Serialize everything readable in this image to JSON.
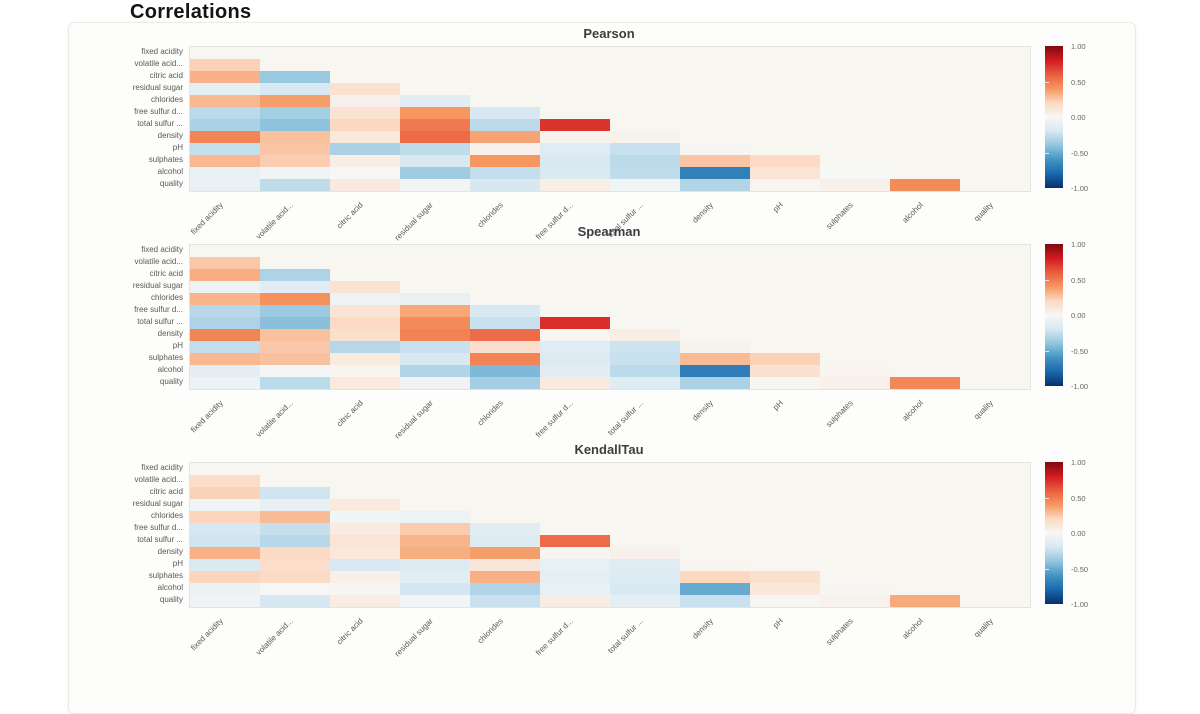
{
  "page": {
    "title": "Correlations"
  },
  "colorbar": {
    "ticks": [
      "1.00",
      "0.50",
      "0.00",
      "-0.50",
      "-1.00"
    ]
  },
  "colorscale": {
    "negative_end": "#07306b",
    "midpoint": "#f7f7f5",
    "positive_end": "#7f0a10",
    "stops": [
      {
        "v": -1.0,
        "c": "#07306b"
      },
      {
        "v": -0.8,
        "c": "#1b67ab"
      },
      {
        "v": -0.6,
        "c": "#4394c3"
      },
      {
        "v": -0.4,
        "c": "#92c5de"
      },
      {
        "v": -0.2,
        "c": "#d7e8f2"
      },
      {
        "v": 0.0,
        "c": "#f7f7f5"
      },
      {
        "v": 0.2,
        "c": "#fcd8c1"
      },
      {
        "v": 0.4,
        "c": "#f5975f"
      },
      {
        "v": 0.6,
        "c": "#ea5c40"
      },
      {
        "v": 0.8,
        "c": "#d11a1f"
      },
      {
        "v": 1.0,
        "c": "#7f0a10"
      }
    ]
  },
  "variables": [
    "fixed acidity",
    "volatile acid...",
    "citric acid",
    "residual sugar",
    "chlorides",
    "free sulfur d...",
    "total sulfur ...",
    "density",
    "pH",
    "sulphates",
    "alcohol",
    "quality"
  ],
  "chart_data": [
    {
      "type": "heatmap",
      "title": "Pearson",
      "shape": "lower-triangle-no-diagonal",
      "x_labels": [
        "fixed acidity",
        "volatile acid...",
        "citric acid",
        "residual sugar",
        "chlorides",
        "free sulfur d...",
        "total sulfur ...",
        "density",
        "pH",
        "sulphates",
        "alcohol",
        "quality"
      ],
      "y_labels": [
        "fixed acidity",
        "volatile acid...",
        "citric acid",
        "residual sugar",
        "chlorides",
        "free sulfur d...",
        "total sulfur ...",
        "density",
        "pH",
        "sulphates",
        "alcohol",
        "quality"
      ],
      "value_range": [
        -1.0,
        1.0
      ],
      "rows": [
        [],
        [
          0.22
        ],
        [
          0.32,
          -0.38
        ],
        [
          -0.11,
          -0.2,
          0.14
        ],
        [
          0.3,
          0.38,
          0.04,
          -0.13
        ],
        [
          -0.28,
          -0.35,
          0.13,
          0.4,
          -0.2
        ],
        [
          -0.33,
          -0.41,
          0.2,
          0.5,
          -0.28,
          0.72
        ],
        [
          0.46,
          0.27,
          0.1,
          0.55,
          0.36,
          0.03,
          0.03
        ],
        [
          -0.25,
          0.26,
          -0.33,
          -0.27,
          0.04,
          -0.15,
          -0.24,
          0.01
        ],
        [
          0.3,
          0.23,
          0.06,
          -0.19,
          0.4,
          -0.19,
          -0.28,
          0.26,
          0.19
        ],
        [
          -0.1,
          -0.04,
          -0.01,
          -0.36,
          -0.26,
          -0.18,
          -0.27,
          -0.69,
          0.12,
          0.0
        ],
        [
          -0.08,
          -0.27,
          0.09,
          -0.04,
          -0.2,
          0.06,
          -0.04,
          -0.31,
          0.02,
          0.04,
          0.44
        ]
      ]
    },
    {
      "type": "heatmap",
      "title": "Spearman",
      "shape": "lower-triangle-no-diagonal",
      "x_labels": [
        "fixed acidity",
        "volatile acid...",
        "citric acid",
        "residual sugar",
        "chlorides",
        "free sulfur d...",
        "total sulfur ...",
        "density",
        "pH",
        "sulphates",
        "alcohol",
        "quality"
      ],
      "y_labels": [
        "fixed acidity",
        "volatile acid...",
        "citric acid",
        "residual sugar",
        "chlorides",
        "free sulfur d...",
        "total sulfur ...",
        "density",
        "pH",
        "sulphates",
        "alcohol",
        "quality"
      ],
      "value_range": [
        -1.0,
        1.0
      ],
      "rows": [
        [],
        [
          0.25
        ],
        [
          0.33,
          -0.32
        ],
        [
          -0.06,
          -0.13,
          0.13
        ],
        [
          0.31,
          0.42,
          -0.05,
          -0.09
        ],
        [
          -0.29,
          -0.37,
          0.12,
          0.35,
          -0.19
        ],
        [
          -0.32,
          -0.42,
          0.18,
          0.44,
          -0.24,
          0.74
        ],
        [
          0.46,
          0.27,
          0.15,
          0.47,
          0.55,
          0.01,
          0.06
        ],
        [
          -0.26,
          0.25,
          -0.3,
          -0.24,
          0.16,
          -0.15,
          -0.23,
          0.03
        ],
        [
          0.3,
          0.27,
          0.08,
          -0.19,
          0.46,
          -0.17,
          -0.24,
          0.29,
          0.22
        ],
        [
          -0.11,
          -0.02,
          0.02,
          -0.31,
          -0.45,
          -0.14,
          -0.28,
          -0.7,
          0.14,
          0.02
        ],
        [
          -0.06,
          -0.28,
          0.09,
          -0.05,
          -0.35,
          0.09,
          -0.15,
          -0.33,
          0.02,
          0.04,
          0.45
        ]
      ]
    },
    {
      "type": "heatmap",
      "title": "KendallTau",
      "shape": "lower-triangle-no-diagonal",
      "x_labels": [
        "fixed acidity",
        "volatile acid...",
        "citric acid",
        "residual sugar",
        "chlorides",
        "free sulfur d...",
        "total sulfur ...",
        "density",
        "pH",
        "sulphates",
        "alcohol",
        "quality"
      ],
      "y_labels": [
        "fixed acidity",
        "volatile acid...",
        "citric acid",
        "residual sugar",
        "chlorides",
        "free sulfur d...",
        "total sulfur ...",
        "density",
        "pH",
        "sulphates",
        "alcohol",
        "quality"
      ],
      "value_range": [
        -1.0,
        1.0
      ],
      "rows": [
        [],
        [
          0.17
        ],
        [
          0.22,
          -0.22
        ],
        [
          -0.04,
          -0.09,
          0.09
        ],
        [
          0.21,
          0.29,
          -0.03,
          -0.06
        ],
        [
          -0.2,
          -0.25,
          0.08,
          0.24,
          -0.13
        ],
        [
          -0.22,
          -0.29,
          0.12,
          0.31,
          -0.16,
          0.55
        ],
        [
          0.32,
          0.18,
          0.1,
          0.33,
          0.38,
          0.01,
          0.04
        ],
        [
          -0.18,
          0.17,
          -0.2,
          -0.16,
          0.11,
          -0.1,
          -0.15,
          0.02
        ],
        [
          0.21,
          0.18,
          0.05,
          -0.13,
          0.32,
          -0.11,
          -0.16,
          0.2,
          0.15
        ],
        [
          -0.07,
          -0.01,
          0.01,
          -0.21,
          -0.31,
          -0.1,
          -0.19,
          -0.51,
          0.1,
          0.01
        ],
        [
          -0.05,
          -0.2,
          0.07,
          -0.03,
          -0.24,
          0.07,
          -0.11,
          -0.24,
          0.01,
          0.03,
          0.34
        ]
      ]
    }
  ]
}
